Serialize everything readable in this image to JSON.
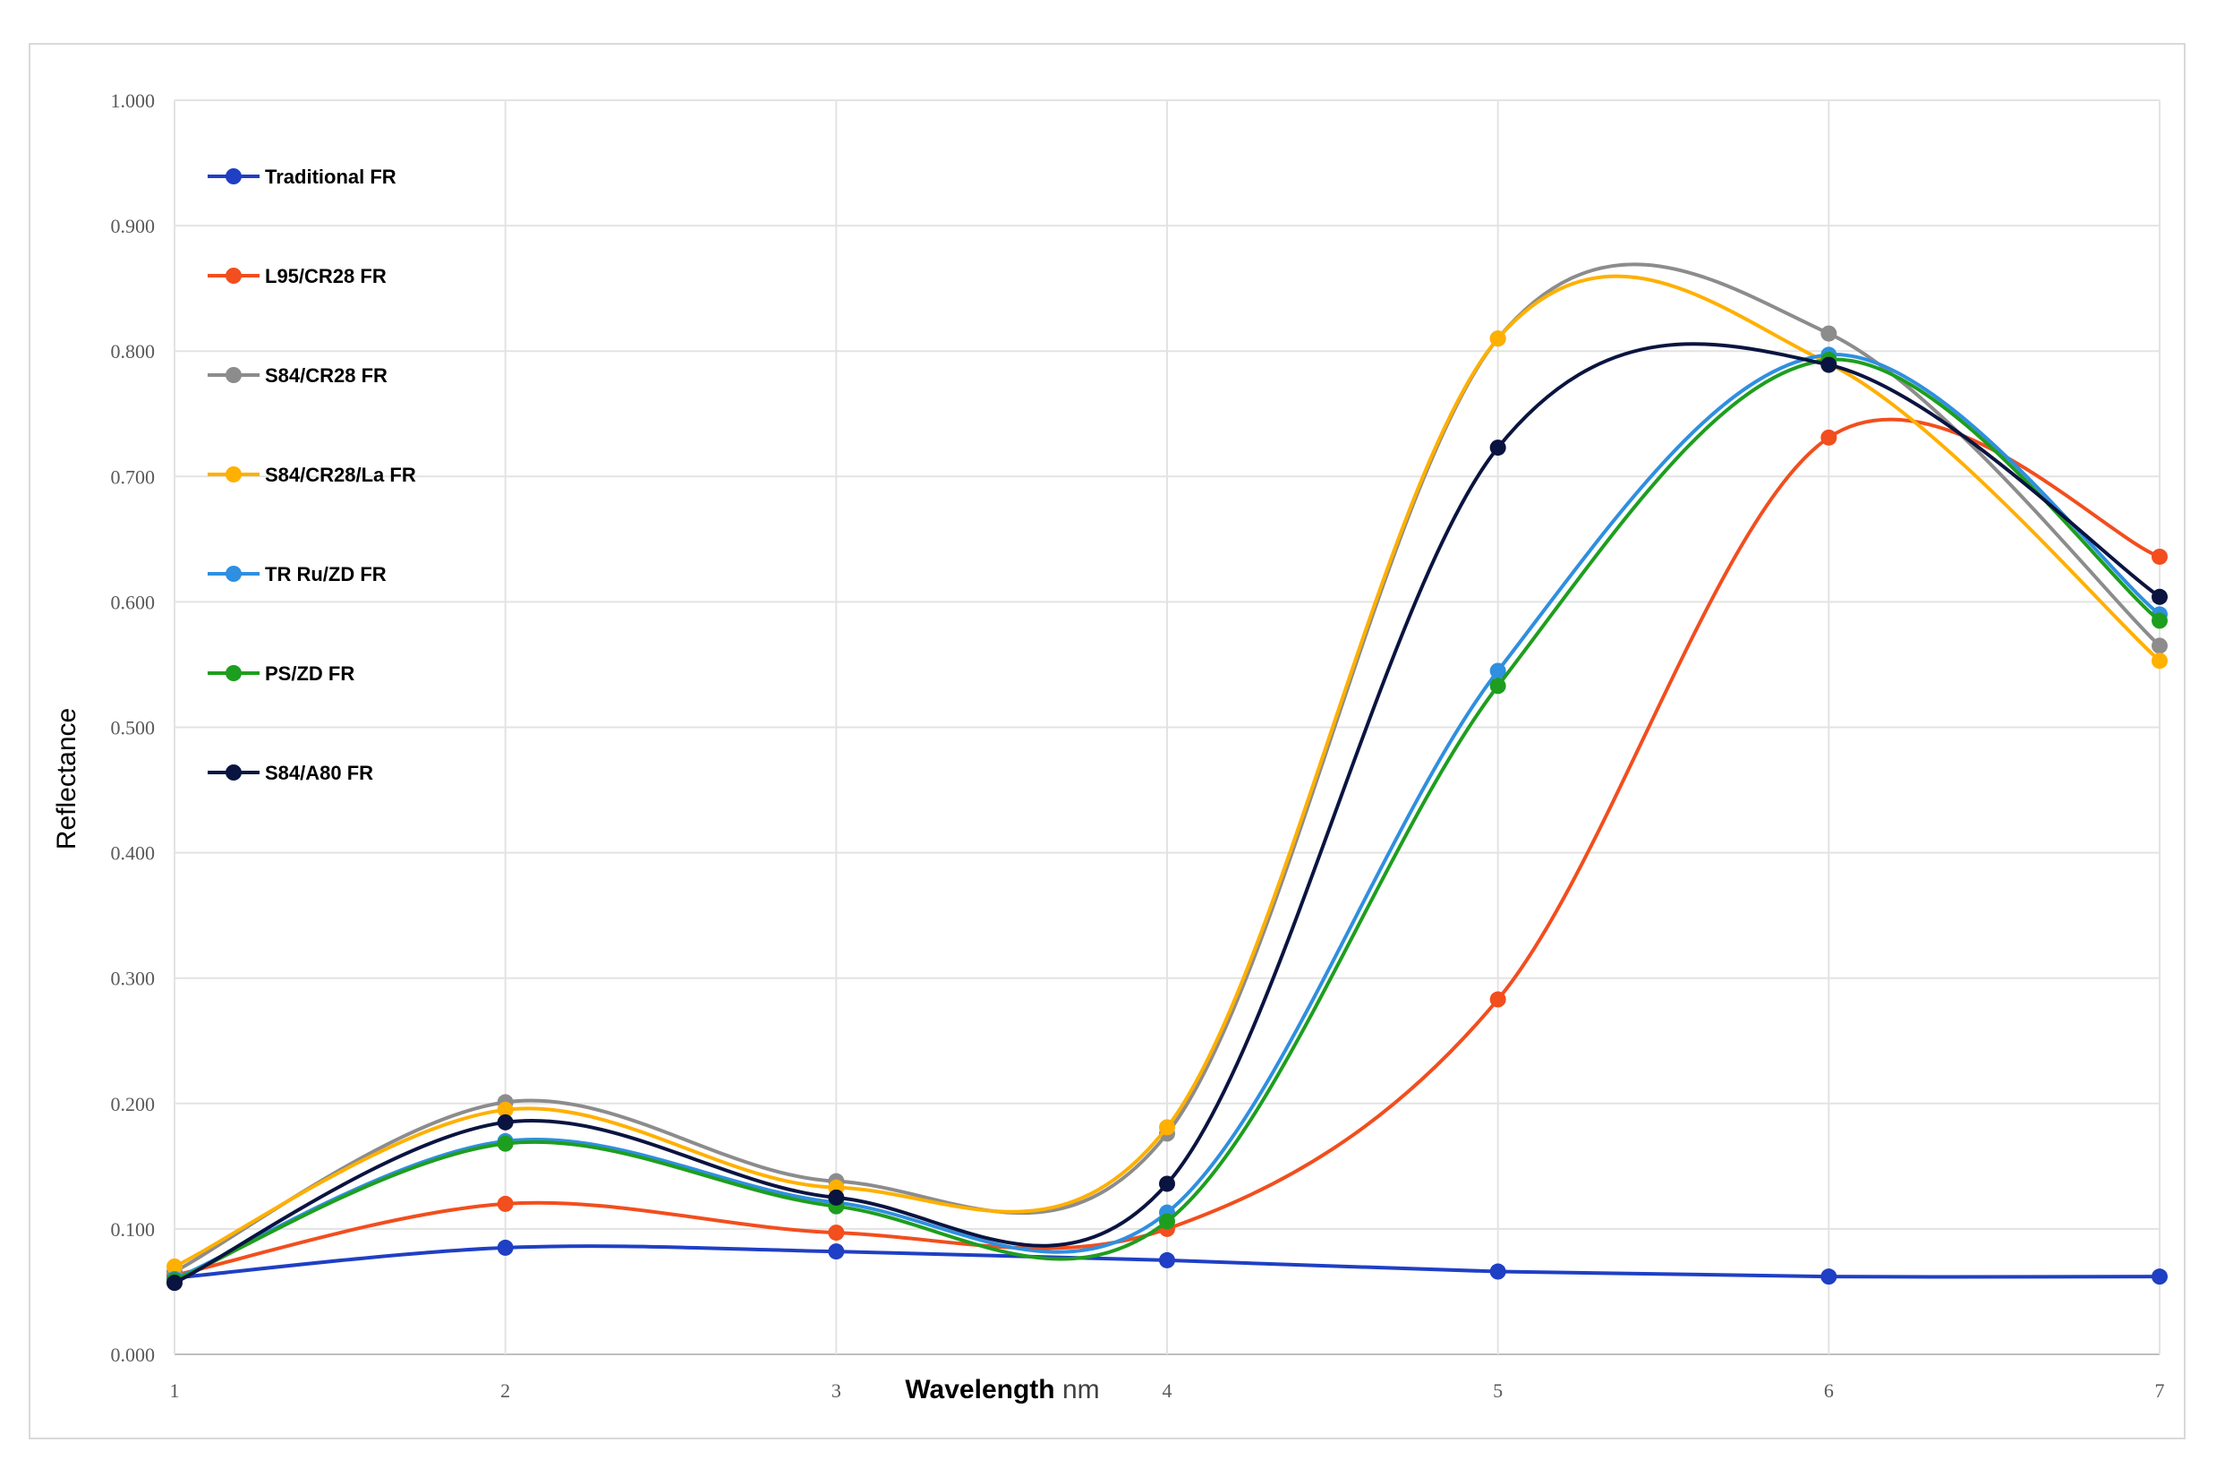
{
  "chart_data": {
    "type": "line",
    "title": "",
    "xlabel_bold": "Wavelength",
    "xlabel_rest": " nm",
    "ylabel": "Reflectance",
    "x": [
      1,
      2,
      3,
      4,
      5,
      6,
      7
    ],
    "x_tick_labels": [
      "1",
      "2",
      "3",
      "4",
      "5",
      "6",
      "7"
    ],
    "ylim": [
      0,
      1
    ],
    "y_tick_labels": [
      "0.000",
      "0.100",
      "0.200",
      "0.300",
      "0.400",
      "0.500",
      "0.600",
      "0.700",
      "0.800",
      "0.900",
      "1.000"
    ],
    "grid": true,
    "smooth": true,
    "legend_position": "top-left",
    "series": [
      {
        "name": "Traditional FR",
        "color": "#1f3fc4",
        "values": [
          0.061,
          0.085,
          0.082,
          0.075,
          0.066,
          0.062,
          0.062
        ]
      },
      {
        "name": "L95/CR28 FR",
        "color": "#f24e1e",
        "values": [
          0.063,
          0.12,
          0.097,
          0.1,
          0.283,
          0.731,
          0.636
        ]
      },
      {
        "name": "S84/CR28 FR",
        "color": "#8c8c8c",
        "values": [
          0.066,
          0.201,
          0.138,
          0.176,
          0.81,
          0.814,
          0.565
        ]
      },
      {
        "name": "S84/CR28/La FR",
        "color": "#ffb000",
        "values": [
          0.07,
          0.195,
          0.133,
          0.181,
          0.81,
          0.79,
          0.553
        ]
      },
      {
        "name": "TR Ru/ZD FR",
        "color": "#2f8fe0",
        "values": [
          0.06,
          0.17,
          0.121,
          0.113,
          0.545,
          0.797,
          0.59
        ]
      },
      {
        "name": "PS/ZD FR",
        "color": "#1e9e1e",
        "values": [
          0.059,
          0.168,
          0.118,
          0.106,
          0.533,
          0.793,
          0.585
        ]
      },
      {
        "name": "S84/A80 FR",
        "color": "#0a1440",
        "values": [
          0.057,
          0.185,
          0.125,
          0.136,
          0.723,
          0.789,
          0.604
        ]
      }
    ]
  }
}
